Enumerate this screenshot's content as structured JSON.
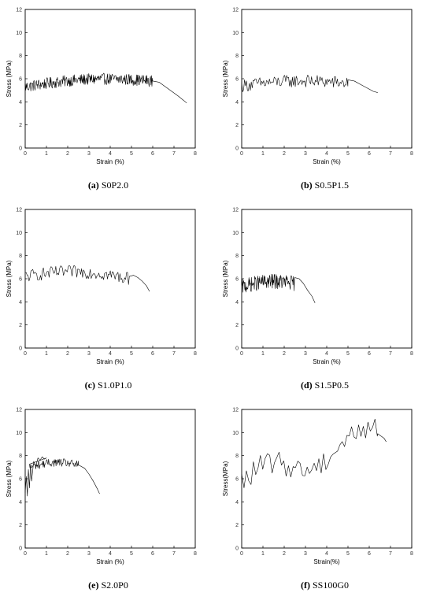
{
  "chart_data": [
    {
      "type": "line",
      "caption_letter": "(a)",
      "caption_name": "S0P2.0",
      "xlabel": "Strain (%)",
      "ylabel": "Stress (MPa)",
      "xlim": [
        0,
        8
      ],
      "ylim": [
        0,
        12
      ],
      "xticks": [
        "0",
        "1",
        "2",
        "3",
        "4",
        "5",
        "6",
        "7",
        "8"
      ],
      "yticks": [
        "0",
        "2",
        "4",
        "6",
        "8",
        "10",
        "12"
      ],
      "grid": false,
      "noise": {
        "x0": 0.0,
        "x1": 6.0,
        "y_start": 5.3,
        "y_end": 5.8,
        "bump": 0.4,
        "amp": 0.5,
        "dx": 0.022
      },
      "tail": {
        "x": [
          6.0,
          6.3,
          6.6,
          6.9,
          7.2,
          7.6
        ],
        "y": [
          5.8,
          5.7,
          5.3,
          4.9,
          4.5,
          3.9
        ]
      }
    },
    {
      "type": "line",
      "caption_letter": "(b)",
      "caption_name": "S0.5P1.5",
      "xlabel": "Strain (%)",
      "ylabel": "Stress (MPa)",
      "xlim": [
        0,
        8
      ],
      "ylim": [
        0,
        12
      ],
      "xticks": [
        "0",
        "1",
        "2",
        "3",
        "4",
        "5",
        "6",
        "7",
        "8"
      ],
      "yticks": [
        "0",
        "2",
        "4",
        "6",
        "8",
        "10",
        "12"
      ],
      "grid": false,
      "noise": {
        "x0": 0.0,
        "x1": 5.0,
        "y_start": 5.4,
        "y_end": 5.6,
        "bump": 0.3,
        "amp": 0.55,
        "dx": 0.045
      },
      "tail": {
        "x": [
          5.0,
          5.3,
          5.6,
          5.9,
          6.2,
          6.4
        ],
        "y": [
          5.9,
          5.8,
          5.5,
          5.2,
          4.9,
          4.8
        ]
      }
    },
    {
      "type": "line",
      "caption_letter": "(c)",
      "caption_name": "S1.0P1.0",
      "xlabel": "Strain (%)",
      "ylabel": "Stress (MPa)",
      "xlim": [
        0,
        8
      ],
      "ylim": [
        0,
        12
      ],
      "xticks": [
        "0",
        "1",
        "2",
        "3",
        "4",
        "5",
        "6",
        "7",
        "8"
      ],
      "yticks": [
        "0",
        "2",
        "4",
        "6",
        "8",
        "10",
        "12"
      ],
      "grid": false,
      "noise": {
        "x0": 0.0,
        "x1": 4.9,
        "y_start": 6.2,
        "y_end": 6.0,
        "bump": 0.5,
        "amp": 0.55,
        "dx": 0.045
      },
      "tail": {
        "x": [
          4.9,
          5.1,
          5.3,
          5.5,
          5.7,
          5.85
        ],
        "y": [
          6.2,
          6.3,
          6.1,
          5.8,
          5.4,
          4.9
        ]
      }
    },
    {
      "type": "line",
      "caption_letter": "(d)",
      "caption_name": "S1.5P0.5",
      "xlabel": "Strain (%)",
      "ylabel": "Stress (MPa)",
      "xlim": [
        0,
        8
      ],
      "ylim": [
        0,
        12
      ],
      "xticks": [
        "0",
        "1",
        "2",
        "3",
        "4",
        "5",
        "6",
        "7",
        "8"
      ],
      "yticks": [
        "0",
        "2",
        "4",
        "6",
        "8",
        "10",
        "12"
      ],
      "grid": false,
      "noise": {
        "x0": 0.0,
        "x1": 2.5,
        "y_start": 5.3,
        "y_end": 5.6,
        "bump": 0.3,
        "amp": 0.65,
        "dx": 0.018
      },
      "tail": {
        "x": [
          2.5,
          2.7,
          2.9,
          3.1,
          3.3,
          3.45
        ],
        "y": [
          6.1,
          6.0,
          5.6,
          5.0,
          4.5,
          3.9
        ]
      }
    },
    {
      "type": "line",
      "caption_letter": "(e)",
      "caption_name": "S2.0P0",
      "xlabel": "Strain (%)",
      "ylabel": "Stress (MPa)",
      "xlim": [
        0,
        8
      ],
      "ylim": [
        0,
        12
      ],
      "xticks": [
        "0",
        "1",
        "2",
        "3",
        "4",
        "5",
        "6",
        "7",
        "8"
      ],
      "yticks": [
        "0",
        "2",
        "4",
        "6",
        "8",
        "10",
        "12"
      ],
      "grid": false,
      "noise": {
        "x0": 0.2,
        "x1": 2.5,
        "y_start": 7.0,
        "y_end": 7.2,
        "bump": 0.3,
        "amp": 0.35,
        "dx": 0.025
      },
      "start": {
        "x": [
          0.0,
          0.05,
          0.1,
          0.15,
          0.2,
          0.25,
          0.3,
          0.4,
          0.5,
          0.6,
          0.7,
          0.8,
          0.9,
          1.0
        ],
        "y": [
          4.8,
          6.2,
          4.5,
          6.8,
          5.2,
          7.2,
          5.8,
          7.5,
          7.1,
          7.8,
          7.6,
          7.9,
          7.7,
          7.8
        ]
      },
      "tail": {
        "x": [
          2.5,
          2.8,
          3.0,
          3.2,
          3.4,
          3.5
        ],
        "y": [
          7.2,
          6.9,
          6.4,
          5.8,
          5.1,
          4.7
        ]
      }
    },
    {
      "type": "line",
      "caption_letter": "(f)",
      "caption_name": "SS100G0",
      "xlabel": "Strain(%)",
      "ylabel": "Stress(MPa)",
      "xlim": [
        0,
        8
      ],
      "ylim": [
        0,
        12
      ],
      "xticks": [
        "0",
        "1",
        "2",
        "3",
        "4",
        "5",
        "6",
        "7",
        "8"
      ],
      "yticks": [
        "0",
        "2",
        "4",
        "6",
        "8",
        "10",
        "12"
      ],
      "grid": false,
      "noise": {
        "x0": 0.0,
        "x1": 6.4,
        "y_start": 5.6,
        "y_end": 9.9,
        "bump": 0.0,
        "amp": 1.0,
        "dx": 0.11
      },
      "tail": {
        "x": [
          6.4,
          6.55,
          6.7,
          6.8
        ],
        "y": [
          9.9,
          9.7,
          9.5,
          9.2
        ]
      }
    }
  ]
}
